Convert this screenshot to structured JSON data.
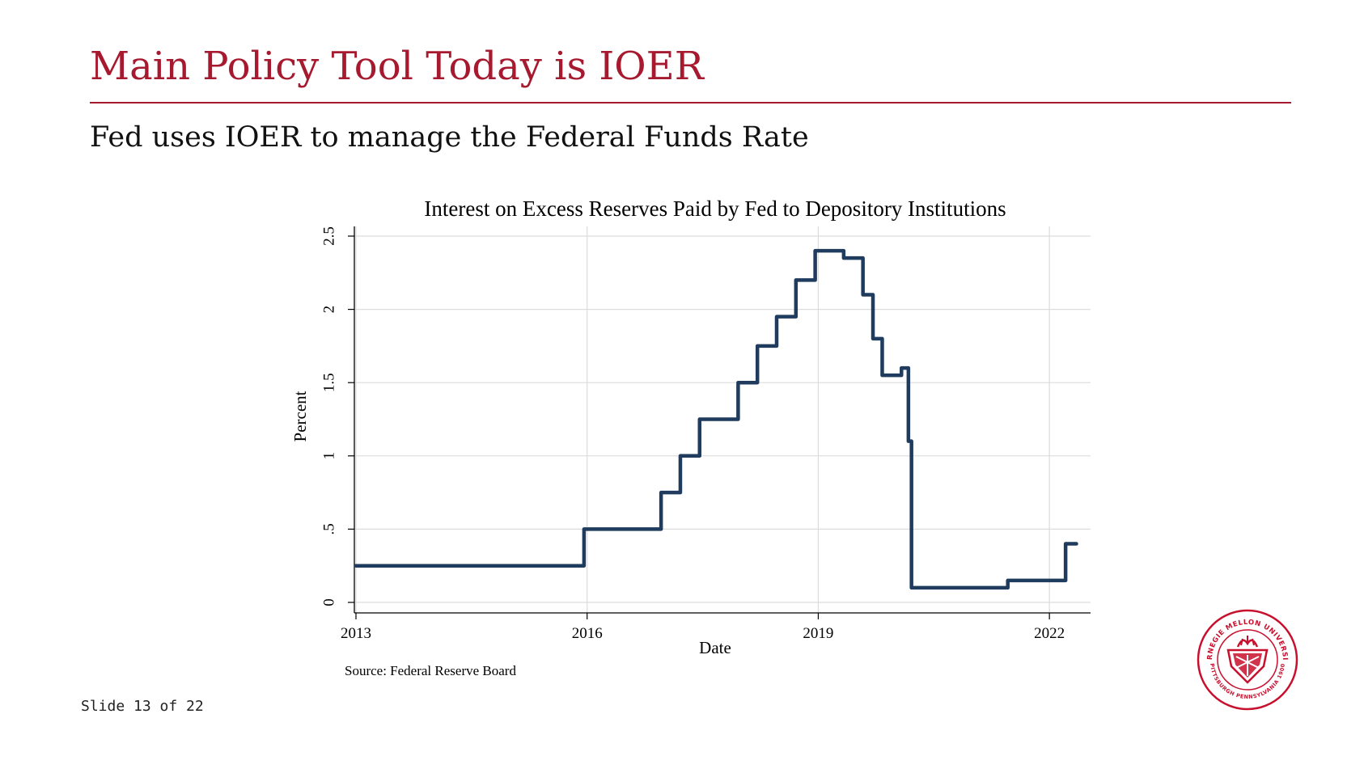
{
  "slide": {
    "title": "Main Policy Tool Today is IOER",
    "subtitle": "Fed uses IOER to manage the Federal Funds Rate",
    "counter": "Slide 13 of 22",
    "accent_color": "#A6192E"
  },
  "chart_data": {
    "type": "line",
    "title": "Interest on Excess Reserves Paid by Fed to Depository Institutions",
    "xlabel": "Date",
    "ylabel": "Percent",
    "source": "Source: Federal Reserve Board",
    "xlim": [
      2013.0,
      2022.45
    ],
    "ylim": [
      0,
      2.5
    ],
    "x_ticks": [
      2013,
      2016,
      2019,
      2022
    ],
    "x_tick_labels": [
      "2013",
      "2016",
      "2019",
      "2022"
    ],
    "y_ticks": [
      0,
      0.5,
      1,
      1.5,
      2,
      2.5
    ],
    "y_tick_labels": [
      "0",
      ".5",
      "1",
      "1.5",
      "2",
      "2.5"
    ],
    "grid": true,
    "line_color": "#1F3B5E",
    "series": [
      {
        "step": "post",
        "x": [
          2013.0,
          2015.96,
          2016.96,
          2017.21,
          2017.46,
          2017.96,
          2018.21,
          2018.46,
          2018.71,
          2018.96,
          2019.33,
          2019.58,
          2019.71,
          2019.83,
          2020.08,
          2020.17,
          2020.21,
          2021.46,
          2022.21,
          2022.35
        ],
        "y": [
          0.25,
          0.5,
          0.75,
          1.0,
          1.25,
          1.5,
          1.75,
          1.95,
          2.2,
          2.4,
          2.35,
          2.1,
          1.8,
          1.55,
          1.6,
          1.1,
          0.1,
          0.15,
          0.4,
          0.4
        ]
      }
    ]
  },
  "seal": {
    "top_text": "CARNEGIE MELLON UNIVERSITY",
    "bottom_text": "PITTSBURGH PENNSYLVANIA 1900",
    "color": "#C8102E"
  }
}
